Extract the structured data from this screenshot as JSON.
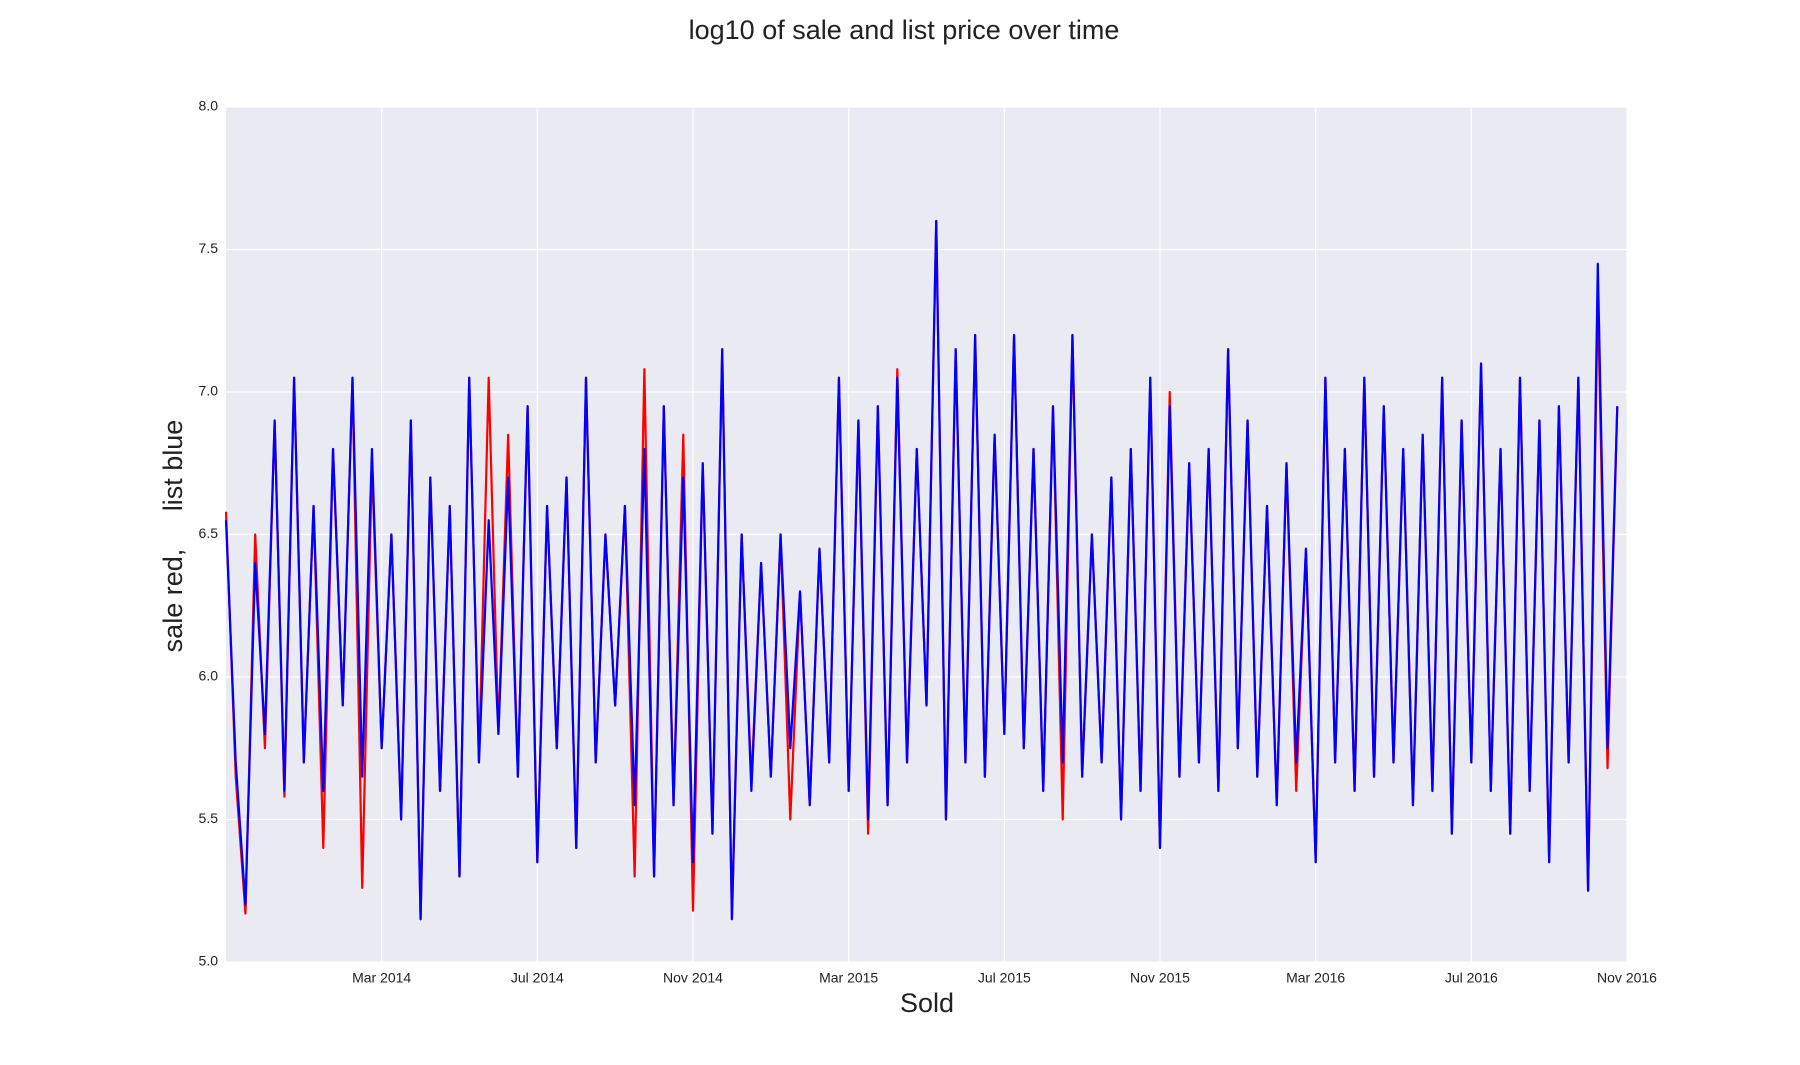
{
  "chart_data": {
    "type": "line",
    "title": "log10 of sale and list price over time",
    "xlabel": "Sold",
    "ylabel": "sale red,     list blue",
    "x": [
      "2013-11",
      "2013-11",
      "2013-11",
      "2013-11",
      "2013-12",
      "2013-12",
      "2013-12",
      "2013-12",
      "2014-01",
      "2014-01",
      "2014-01",
      "2014-01",
      "2014-02",
      "2014-02",
      "2014-02",
      "2014-02",
      "2014-03",
      "2014-03",
      "2014-03",
      "2014-03",
      "2014-04",
      "2014-04",
      "2014-04",
      "2014-04",
      "2014-05",
      "2014-05",
      "2014-05",
      "2014-05",
      "2014-06",
      "2014-06",
      "2014-06",
      "2014-06",
      "2014-07",
      "2014-07",
      "2014-07",
      "2014-07",
      "2014-08",
      "2014-08",
      "2014-08",
      "2014-08",
      "2014-09",
      "2014-09",
      "2014-09",
      "2014-09",
      "2014-10",
      "2014-10",
      "2014-10",
      "2014-10",
      "2014-11",
      "2014-11",
      "2014-11",
      "2014-11",
      "2014-12",
      "2014-12",
      "2014-12",
      "2014-12",
      "2015-01",
      "2015-01",
      "2015-01",
      "2015-01",
      "2015-02",
      "2015-02",
      "2015-02",
      "2015-02",
      "2015-03",
      "2015-03",
      "2015-03",
      "2015-03",
      "2015-04",
      "2015-04",
      "2015-04",
      "2015-04",
      "2015-05",
      "2015-05",
      "2015-05",
      "2015-05",
      "2015-06",
      "2015-06",
      "2015-06",
      "2015-06",
      "2015-07",
      "2015-07",
      "2015-07",
      "2015-07",
      "2015-08",
      "2015-08",
      "2015-08",
      "2015-08",
      "2015-09",
      "2015-09",
      "2015-09",
      "2015-09",
      "2015-10",
      "2015-10",
      "2015-10",
      "2015-10",
      "2015-11",
      "2015-11",
      "2015-11",
      "2015-11",
      "2015-12",
      "2015-12",
      "2015-12",
      "2015-12",
      "2016-01",
      "2016-01",
      "2016-01",
      "2016-01",
      "2016-02",
      "2016-02",
      "2016-02",
      "2016-02",
      "2016-03",
      "2016-03",
      "2016-03",
      "2016-03",
      "2016-04",
      "2016-04",
      "2016-04",
      "2016-04",
      "2016-05",
      "2016-05",
      "2016-05",
      "2016-05",
      "2016-06",
      "2016-06",
      "2016-06",
      "2016-06",
      "2016-07",
      "2016-07",
      "2016-07",
      "2016-07",
      "2016-08",
      "2016-08",
      "2016-08",
      "2016-08",
      "2016-09",
      "2016-09",
      "2016-09",
      "2016-09",
      "2016-10",
      "2016-10",
      "2016-10",
      "2016-10"
    ],
    "series": [
      {
        "name": "sale",
        "color": "#ff0000",
        "values": [
          6.58,
          5.65,
          5.17,
          6.5,
          5.75,
          6.9,
          5.58,
          7.05,
          5.7,
          6.6,
          5.4,
          6.8,
          5.9,
          7.05,
          5.26,
          6.75,
          5.75,
          6.5,
          5.5,
          6.9,
          5.15,
          6.7,
          5.6,
          6.6,
          5.3,
          7.05,
          5.7,
          7.05,
          5.8,
          6.85,
          5.65,
          6.95,
          5.35,
          6.6,
          5.75,
          6.7,
          5.4,
          7.05,
          5.7,
          6.5,
          5.9,
          6.6,
          5.3,
          7.08,
          5.3,
          6.95,
          5.55,
          6.85,
          5.18,
          6.75,
          5.45,
          7.15,
          5.15,
          6.5,
          5.63,
          6.4,
          5.65,
          6.5,
          5.5,
          6.3,
          5.55,
          6.45,
          5.7,
          7.05,
          5.6,
          6.9,
          5.45,
          6.95,
          5.55,
          7.08,
          5.7,
          6.8,
          5.9,
          7.6,
          5.5,
          7.15,
          5.7,
          7.2,
          5.65,
          6.85,
          5.8,
          7.2,
          5.75,
          6.8,
          5.6,
          6.95,
          5.5,
          7.2,
          5.65,
          6.5,
          5.7,
          6.7,
          5.5,
          6.8,
          5.6,
          7.05,
          5.4,
          7.0,
          5.65,
          6.75,
          5.7,
          6.8,
          5.6,
          7.15,
          5.75,
          6.9,
          5.65,
          6.6,
          5.55,
          6.75,
          5.6,
          6.45,
          5.35,
          7.05,
          5.7,
          6.8,
          5.6,
          7.05,
          5.65,
          6.95,
          5.7,
          6.8,
          5.55,
          6.85,
          5.6,
          7.05,
          5.45,
          6.9,
          5.7,
          7.1,
          5.6,
          6.8,
          5.45,
          7.05,
          5.6,
          6.9,
          5.35,
          6.95,
          5.7,
          7.05,
          5.25,
          7.35,
          5.68,
          6.95
        ]
      },
      {
        "name": "list",
        "color": "#0000ff",
        "values": [
          6.55,
          5.7,
          5.2,
          6.4,
          5.8,
          6.9,
          5.6,
          7.05,
          5.7,
          6.6,
          5.6,
          6.8,
          5.9,
          7.05,
          5.65,
          6.8,
          5.75,
          6.5,
          5.5,
          6.9,
          5.15,
          6.7,
          5.6,
          6.6,
          5.3,
          7.05,
          5.7,
          6.55,
          5.8,
          6.7,
          5.65,
          6.95,
          5.35,
          6.6,
          5.75,
          6.7,
          5.4,
          7.05,
          5.7,
          6.5,
          5.9,
          6.6,
          5.55,
          6.8,
          5.3,
          6.95,
          5.55,
          6.7,
          5.35,
          6.75,
          5.45,
          7.15,
          5.15,
          6.5,
          5.6,
          6.4,
          5.65,
          6.5,
          5.75,
          6.3,
          5.55,
          6.45,
          5.7,
          7.05,
          5.6,
          6.9,
          5.5,
          6.95,
          5.55,
          7.05,
          5.7,
          6.8,
          5.9,
          7.6,
          5.5,
          7.15,
          5.7,
          7.2,
          5.65,
          6.85,
          5.8,
          7.2,
          5.75,
          6.8,
          5.6,
          6.95,
          5.7,
          7.2,
          5.65,
          6.5,
          5.7,
          6.7,
          5.5,
          6.8,
          5.6,
          7.05,
          5.4,
          6.95,
          5.65,
          6.75,
          5.7,
          6.8,
          5.6,
          7.15,
          5.75,
          6.9,
          5.65,
          6.6,
          5.55,
          6.75,
          5.7,
          6.45,
          5.35,
          7.05,
          5.7,
          6.8,
          5.6,
          7.05,
          5.65,
          6.95,
          5.7,
          6.8,
          5.55,
          6.85,
          5.6,
          7.05,
          5.45,
          6.9,
          5.7,
          7.1,
          5.6,
          6.8,
          5.45,
          7.05,
          5.6,
          6.9,
          5.35,
          6.95,
          5.7,
          7.05,
          5.25,
          7.45,
          5.75,
          6.95
        ]
      }
    ],
    "xlim": [
      "2013-11",
      "2016-11"
    ],
    "xticks": [
      {
        "value": "2014-03",
        "label": "Mar 2014"
      },
      {
        "value": "2014-07",
        "label": "Jul 2014"
      },
      {
        "value": "2014-11",
        "label": "Nov 2014"
      },
      {
        "value": "2015-03",
        "label": "Mar 2015"
      },
      {
        "value": "2015-07",
        "label": "Jul 2015"
      },
      {
        "value": "2015-11",
        "label": "Nov 2015"
      },
      {
        "value": "2016-03",
        "label": "Mar 2016"
      },
      {
        "value": "2016-07",
        "label": "Jul 2016"
      },
      {
        "value": "2016-11",
        "label": "Nov 2016"
      }
    ],
    "ylim": [
      5,
      8
    ],
    "yticks": [
      {
        "value": 5,
        "label": "5.0"
      },
      {
        "value": 5.5,
        "label": "5.5"
      },
      {
        "value": 6,
        "label": "6.0"
      },
      {
        "value": 6.5,
        "label": "6.5"
      },
      {
        "value": 7,
        "label": "7.0"
      },
      {
        "value": 7.5,
        "label": "7.5"
      },
      {
        "value": 8,
        "label": "8.0"
      }
    ],
    "grid": true
  }
}
